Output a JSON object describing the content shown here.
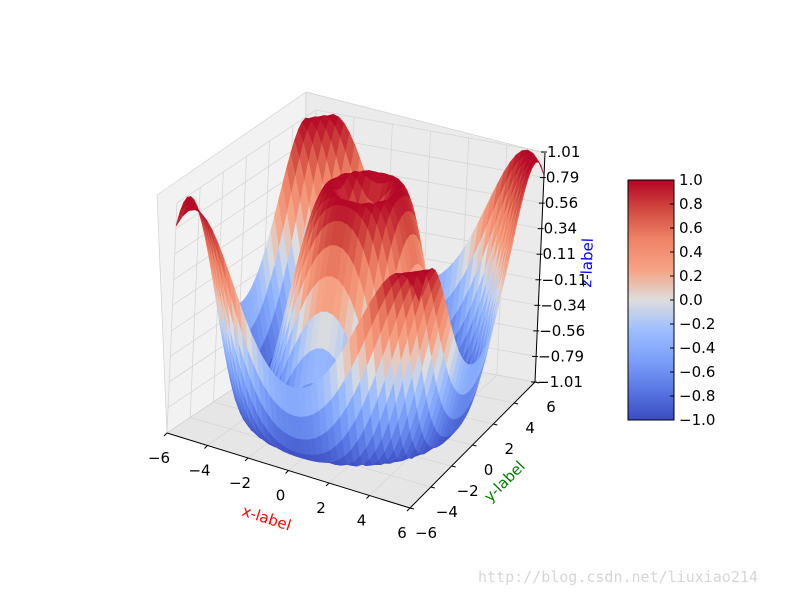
{
  "chart_data": {
    "type": "surface3d",
    "title": "",
    "function": "z = sin(sqrt(x^2 + y^2))",
    "x_range": [
      -6,
      6
    ],
    "y_range": [
      -6,
      6
    ],
    "z_range": [
      -1.01,
      1.01
    ],
    "xlabel": "x-label",
    "ylabel": "y-label",
    "zlabel": "z-label",
    "label_colors": {
      "x": "#ff0000",
      "y": "#008000",
      "z": "#0000ff"
    },
    "xticks": [
      "−6",
      "−4",
      "−2",
      "0",
      "2",
      "4",
      "6"
    ],
    "yticks": [
      "−6",
      "−4",
      "−2",
      "0",
      "2",
      "4",
      "6"
    ],
    "zticks": [
      "−1.01",
      "−0.79",
      "−0.56",
      "−0.34",
      "−0.11",
      "0.11",
      "0.34",
      "0.56",
      "0.79",
      "1.01"
    ],
    "colormap": "coolwarm",
    "colorbar": {
      "ticks": [
        "−1.0",
        "−0.8",
        "−0.6",
        "−0.4",
        "−0.2",
        "0.0",
        "0.2",
        "0.4",
        "0.6",
        "0.8",
        "1.0"
      ],
      "range": [
        -1.0,
        1.0
      ]
    },
    "grid": true
  },
  "watermark": "http://blog.csdn.net/liuxiao214"
}
